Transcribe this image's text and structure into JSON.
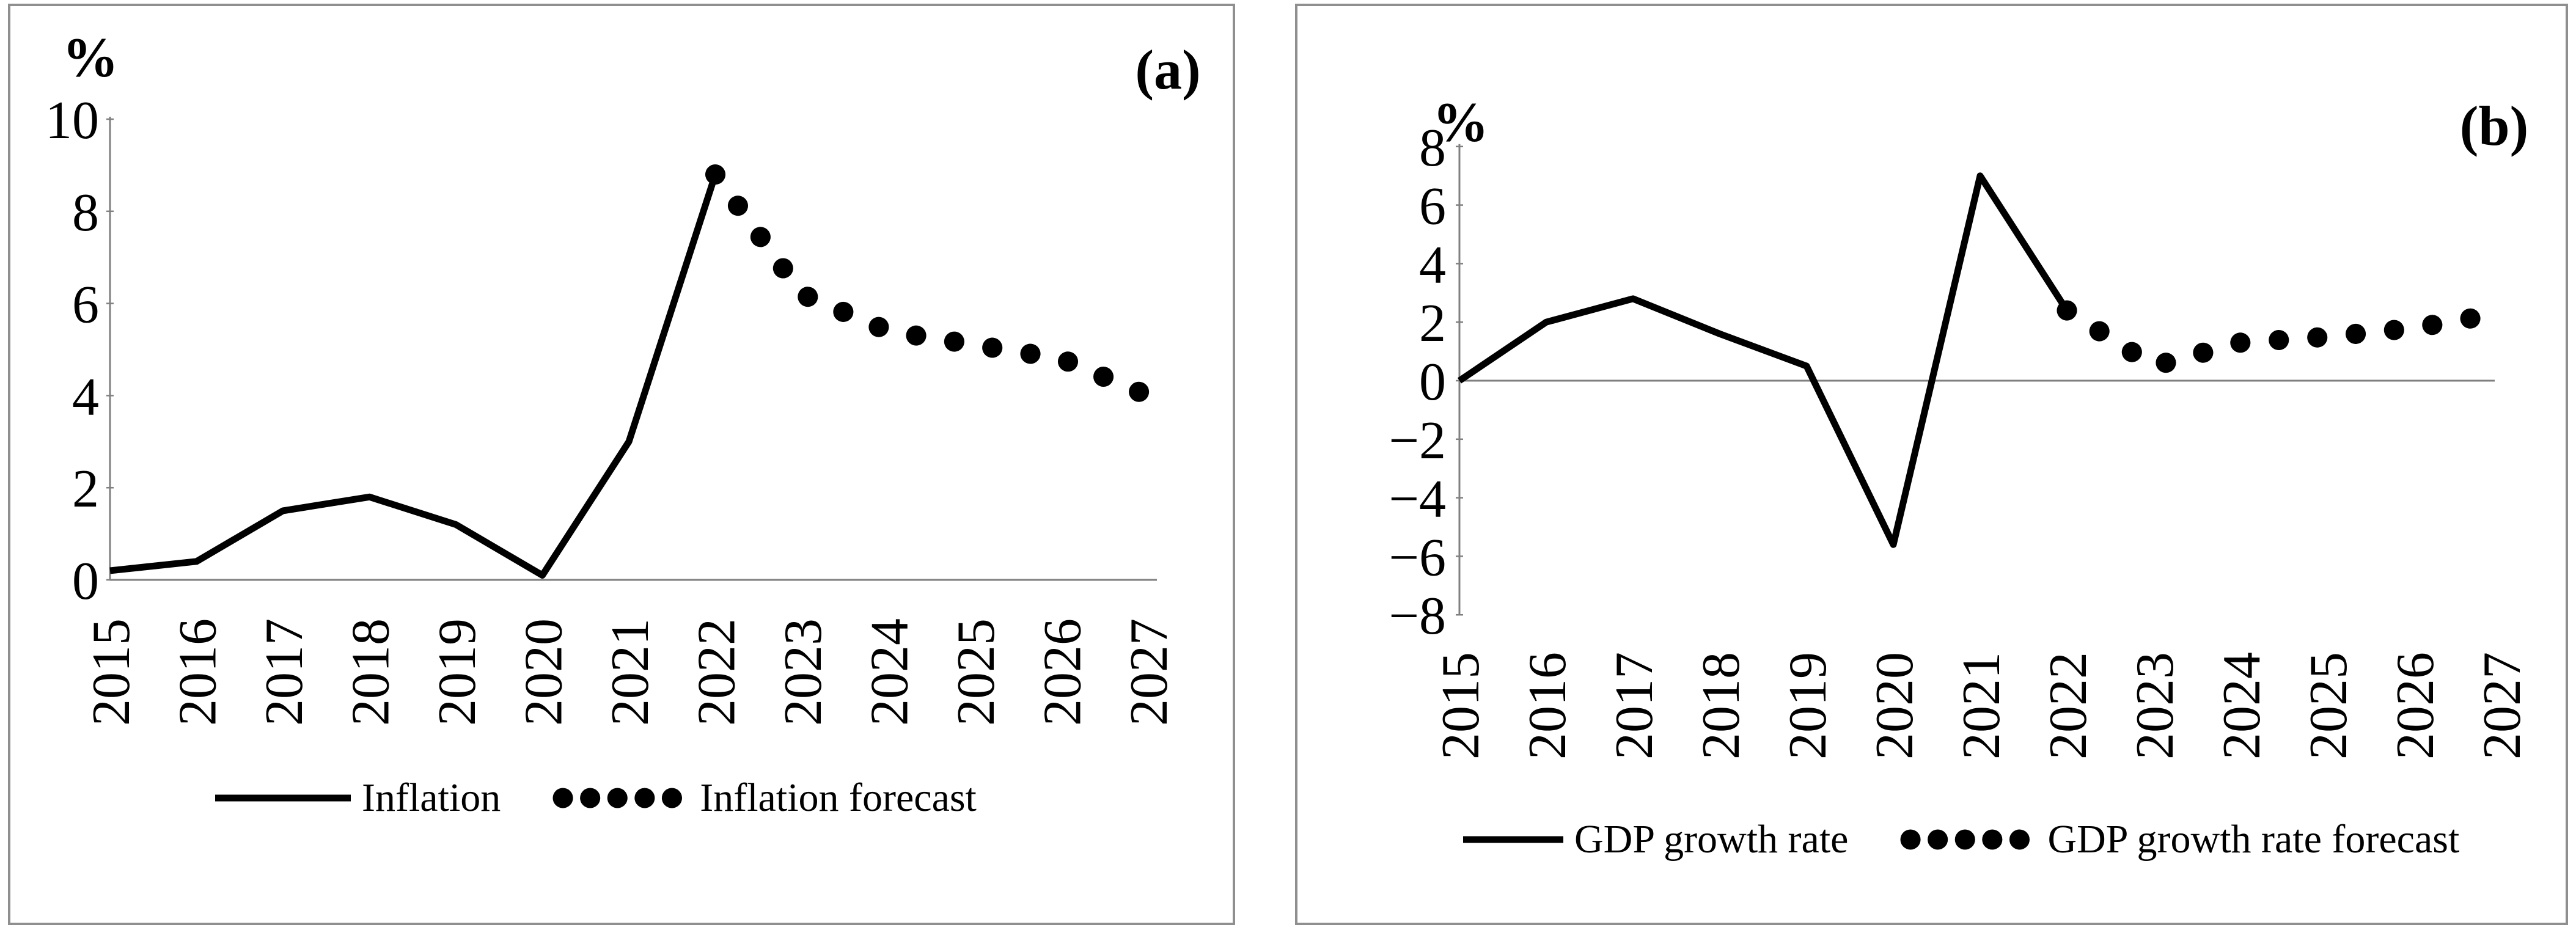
{
  "chart_data": [
    {
      "type": "line",
      "panel_label": "(a)",
      "unit_label": "%",
      "x_categories": [
        "2015",
        "2016",
        "2017",
        "2018",
        "2019",
        "2020",
        "2021",
        "2022",
        "2023",
        "2024",
        "2025",
        "2026",
        "2027"
      ],
      "y_ticks": [
        0,
        2,
        4,
        6,
        8,
        10
      ],
      "ylim": [
        0,
        10
      ],
      "grid": false,
      "legend_position": "bottom",
      "series": [
        {
          "name": "Inflation",
          "style": "solid",
          "start": "2015",
          "values": [
            0.2,
            0.4,
            1.5,
            1.8,
            1.2,
            0.1,
            3.0,
            8.8
          ]
        },
        {
          "name": "Inflation forecast",
          "style": "dotted",
          "start": "2022",
          "values": [
            8.8,
            6.2,
            5.4,
            5.1,
            4.8,
            4.0
          ]
        }
      ]
    },
    {
      "type": "line",
      "panel_label": "(b)",
      "unit_label": "%",
      "x_categories": [
        "2015",
        "2016",
        "2017",
        "2018",
        "2019",
        "2020",
        "2021",
        "2022",
        "2023",
        "2024",
        "2025",
        "2026",
        "2027"
      ],
      "y_ticks": [
        -8,
        -6,
        -4,
        -2,
        0,
        2,
        4,
        6,
        8
      ],
      "ylim": [
        -8,
        8
      ],
      "grid": false,
      "legend_position": "bottom",
      "series": [
        {
          "name": "GDP growth rate",
          "style": "solid",
          "start": "2015",
          "values": [
            0.0,
            2.0,
            2.8,
            1.6,
            0.5,
            -5.6,
            7.0,
            2.4
          ]
        },
        {
          "name": "GDP growth rate forecast",
          "style": "dotted",
          "start": "2022",
          "values": [
            2.4,
            0.5,
            1.3,
            1.5,
            1.8,
            2.3
          ]
        }
      ]
    }
  ]
}
